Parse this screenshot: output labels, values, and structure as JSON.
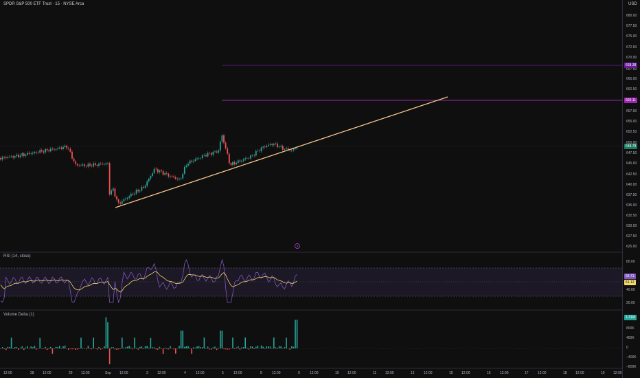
{
  "header": {
    "title": "SPDR S&P 500 ETF Trust · 15 · NYSE Arca",
    "currency": "USD"
  },
  "price_axis": {
    "ticks": [
      "680.00",
      "677.50",
      "675.00",
      "672.50",
      "670.00",
      "667.50",
      "665.00",
      "662.50",
      "657.50",
      "655.00",
      "652.50",
      "650.00",
      "647.50",
      "645.00",
      "642.50",
      "640.00",
      "637.50",
      "635.00",
      "632.50",
      "630.00",
      "627.50",
      "625.00"
    ]
  },
  "price_tags": {
    "upper_level": "668.38",
    "lower_level": "660.11",
    "last_price": "648.78"
  },
  "rsi_pane": {
    "label": "RSI (14, close)",
    "ticks": [
      "80.00",
      "40.00",
      "20.00"
    ],
    "rsi_value": "56.71",
    "ma_value": "51.12"
  },
  "volume_pane": {
    "label": "Volume Delta (1)",
    "ticks": [
      "800K",
      "400K",
      "0",
      "−400K",
      "−800K"
    ],
    "value": "1.31M"
  },
  "time_axis": {
    "labels": [
      "12:00",
      "28",
      "12:00",
      "29",
      "12:00",
      "Sep",
      "12:00",
      "3",
      "12:00",
      "4",
      "12:00",
      "5",
      "12:00",
      "8",
      "12:00",
      "9",
      "12:00",
      "10",
      "12:00",
      "11",
      "12:00",
      "12",
      "12:00",
      "15",
      "12:00",
      "16",
      "12:00",
      "17",
      "12:00",
      "18",
      "12:00",
      "19",
      "12:00"
    ]
  },
  "colors": {
    "up": "#26a69a",
    "down": "#ef5350",
    "trendline": "#f7c58c",
    "level": "#9c27b0",
    "rsi": "#7e57c2",
    "rsi_ma": "#f3d86c",
    "background": "#0f0f0f"
  },
  "icons": {
    "replay": "lightning-icon"
  }
}
